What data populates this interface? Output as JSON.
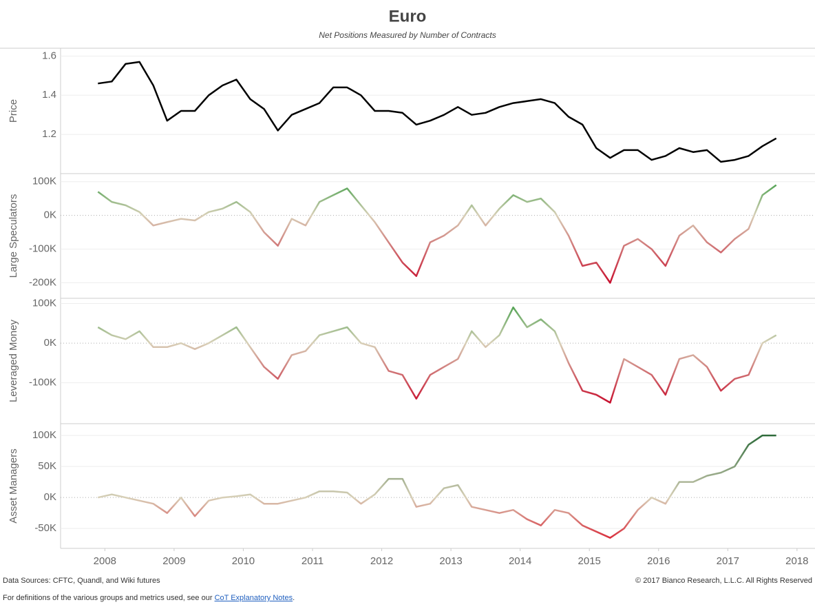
{
  "title": "Euro",
  "subtitle": "Net Positions Measured by Number of Contracts",
  "chart_data": [
    {
      "type": "line",
      "y_label": "Price",
      "color": "#000000",
      "grid": true,
      "x": [
        2007.9,
        2008.1,
        2008.3,
        2008.5,
        2008.7,
        2008.9,
        2009.1,
        2009.3,
        2009.5,
        2009.7,
        2009.9,
        2010.1,
        2010.3,
        2010.5,
        2010.7,
        2010.9,
        2011.1,
        2011.3,
        2011.5,
        2011.7,
        2011.9,
        2012.1,
        2012.3,
        2012.5,
        2012.7,
        2012.9,
        2013.1,
        2013.3,
        2013.5,
        2013.7,
        2013.9,
        2014.1,
        2014.3,
        2014.5,
        2014.7,
        2014.9,
        2015.1,
        2015.3,
        2015.5,
        2015.7,
        2015.9,
        2016.1,
        2016.3,
        2016.5,
        2016.7,
        2016.9,
        2017.1,
        2017.3,
        2017.5,
        2017.7
      ],
      "values": [
        1.46,
        1.47,
        1.56,
        1.57,
        1.45,
        1.27,
        1.32,
        1.32,
        1.4,
        1.45,
        1.48,
        1.38,
        1.33,
        1.22,
        1.3,
        1.33,
        1.36,
        1.44,
        1.44,
        1.4,
        1.32,
        1.32,
        1.31,
        1.25,
        1.27,
        1.3,
        1.34,
        1.3,
        1.31,
        1.34,
        1.36,
        1.37,
        1.38,
        1.36,
        1.29,
        1.25,
        1.13,
        1.08,
        1.12,
        1.12,
        1.07,
        1.09,
        1.13,
        1.11,
        1.12,
        1.06,
        1.07,
        1.09,
        1.14,
        1.18
      ],
      "xlim": [
        2007.36,
        2018.26
      ],
      "ylim": [
        1.0,
        1.64
      ],
      "yticks": [
        1.2,
        1.4,
        1.6
      ]
    },
    {
      "type": "line",
      "y_label": "Large Speculators",
      "colors": [
        "#c8102e",
        "#d8d0b8",
        "#58a558"
      ],
      "grid": true,
      "x": [
        2007.9,
        2008.1,
        2008.3,
        2008.5,
        2008.7,
        2008.9,
        2009.1,
        2009.3,
        2009.5,
        2009.7,
        2009.9,
        2010.1,
        2010.3,
        2010.5,
        2010.7,
        2010.9,
        2011.1,
        2011.3,
        2011.5,
        2011.7,
        2011.9,
        2012.1,
        2012.3,
        2012.5,
        2012.7,
        2012.9,
        2013.1,
        2013.3,
        2013.5,
        2013.7,
        2013.9,
        2014.1,
        2014.3,
        2014.5,
        2014.7,
        2014.9,
        2015.1,
        2015.3,
        2015.5,
        2015.7,
        2015.9,
        2016.1,
        2016.3,
        2016.5,
        2016.7,
        2016.9,
        2017.1,
        2017.3,
        2017.5,
        2017.7
      ],
      "values": [
        70000,
        40000,
        30000,
        10000,
        -30000,
        -20000,
        -10000,
        -15000,
        10000,
        20000,
        40000,
        10000,
        -50000,
        -90000,
        -10000,
        -30000,
        40000,
        60000,
        80000,
        30000,
        -20000,
        -80000,
        -140000,
        -180000,
        -80000,
        -60000,
        -30000,
        30000,
        -30000,
        20000,
        60000,
        40000,
        50000,
        10000,
        -60000,
        -150000,
        -140000,
        -200000,
        -90000,
        -70000,
        -100000,
        -150000,
        -60000,
        -30000,
        -80000,
        -110000,
        -70000,
        -40000,
        60000,
        90000
      ],
      "xlim": [
        2007.36,
        2018.26
      ],
      "ylim": [
        -246000,
        124000
      ],
      "yticks": [
        {
          "value": -200000,
          "label": "-200K"
        },
        {
          "value": -100000,
          "label": "-100K"
        },
        {
          "value": 0,
          "label": "0K"
        },
        {
          "value": 100000,
          "label": "100K"
        }
      ]
    },
    {
      "type": "line",
      "y_label": "Leveraged Money",
      "colors": [
        "#c8102e",
        "#d8d0b8",
        "#58a558"
      ],
      "grid": true,
      "x": [
        2007.9,
        2008.1,
        2008.3,
        2008.5,
        2008.7,
        2008.9,
        2009.1,
        2009.3,
        2009.5,
        2009.7,
        2009.9,
        2010.1,
        2010.3,
        2010.5,
        2010.7,
        2010.9,
        2011.1,
        2011.3,
        2011.5,
        2011.7,
        2011.9,
        2012.1,
        2012.3,
        2012.5,
        2012.7,
        2012.9,
        2013.1,
        2013.3,
        2013.5,
        2013.7,
        2013.9,
        2014.1,
        2014.3,
        2014.5,
        2014.7,
        2014.9,
        2015.1,
        2015.3,
        2015.5,
        2015.7,
        2015.9,
        2016.1,
        2016.3,
        2016.5,
        2016.7,
        2016.9,
        2017.1,
        2017.3,
        2017.5,
        2017.7
      ],
      "values": [
        40000,
        20000,
        10000,
        30000,
        -10000,
        -10000,
        0,
        -15000,
        0,
        20000,
        40000,
        -10000,
        -60000,
        -90000,
        -30000,
        -20000,
        20000,
        30000,
        40000,
        0,
        -10000,
        -70000,
        -80000,
        -140000,
        -80000,
        -60000,
        -40000,
        30000,
        -10000,
        20000,
        90000,
        40000,
        60000,
        30000,
        -50000,
        -120000,
        -130000,
        -150000,
        -40000,
        -60000,
        -80000,
        -130000,
        -40000,
        -30000,
        -60000,
        -120000,
        -90000,
        -80000,
        0,
        20000
      ],
      "xlim": [
        2007.36,
        2018.26
      ],
      "ylim": [
        -203000,
        113000
      ],
      "yticks": [
        {
          "value": -100000,
          "label": "-100K"
        },
        {
          "value": 0,
          "label": "0K"
        },
        {
          "value": 100000,
          "label": "100K"
        }
      ]
    },
    {
      "type": "line",
      "y_label": "Asset Managers",
      "colors": [
        "#d9303e",
        "#d8d0b8",
        "#2e6b3a"
      ],
      "grid": true,
      "x": [
        2007.9,
        2008.1,
        2008.3,
        2008.5,
        2008.7,
        2008.9,
        2009.1,
        2009.3,
        2009.5,
        2009.7,
        2009.9,
        2010.1,
        2010.3,
        2010.5,
        2010.7,
        2010.9,
        2011.1,
        2011.3,
        2011.5,
        2011.7,
        2011.9,
        2012.1,
        2012.3,
        2012.5,
        2012.7,
        2012.9,
        2013.1,
        2013.3,
        2013.5,
        2013.7,
        2013.9,
        2014.1,
        2014.3,
        2014.5,
        2014.7,
        2014.9,
        2015.1,
        2015.3,
        2015.5,
        2015.7,
        2015.9,
        2016.1,
        2016.3,
        2016.5,
        2016.7,
        2016.9,
        2017.1,
        2017.3,
        2017.5,
        2017.7
      ],
      "values": [
        0,
        5000,
        0,
        -5000,
        -10000,
        -25000,
        0,
        -30000,
        -5000,
        0,
        2000,
        5000,
        -10000,
        -10000,
        -5000,
        0,
        10000,
        10000,
        8000,
        -10000,
        5000,
        30000,
        30000,
        -15000,
        -10000,
        15000,
        20000,
        -15000,
        -20000,
        -25000,
        -20000,
        -35000,
        -45000,
        -20000,
        -25000,
        -45000,
        -55000,
        -65000,
        -50000,
        -20000,
        0,
        -10000,
        25000,
        25000,
        35000,
        40000,
        50000,
        85000,
        100000,
        100000
      ],
      "xlim": [
        2007.36,
        2018.26
      ],
      "ylim": [
        -82000,
        119000
      ],
      "yticks": [
        {
          "value": -50000,
          "label": "-50K"
        },
        {
          "value": 0,
          "label": "0K"
        },
        {
          "value": 50000,
          "label": "50K"
        },
        {
          "value": 100000,
          "label": "100K"
        }
      ],
      "xticks": [
        2008,
        2009,
        2010,
        2011,
        2012,
        2013,
        2014,
        2015,
        2016,
        2017,
        2018
      ]
    }
  ],
  "footer": {
    "sources": "Data Sources: CFTC, Quandl, and Wiki futures",
    "copyright": "© 2017 Bianco Research, L.L.C. All Rights Reserved",
    "note": "For definitions of the various groups and metrics used, see our",
    "link": "CoT Explanatory Notes",
    "end": "."
  }
}
